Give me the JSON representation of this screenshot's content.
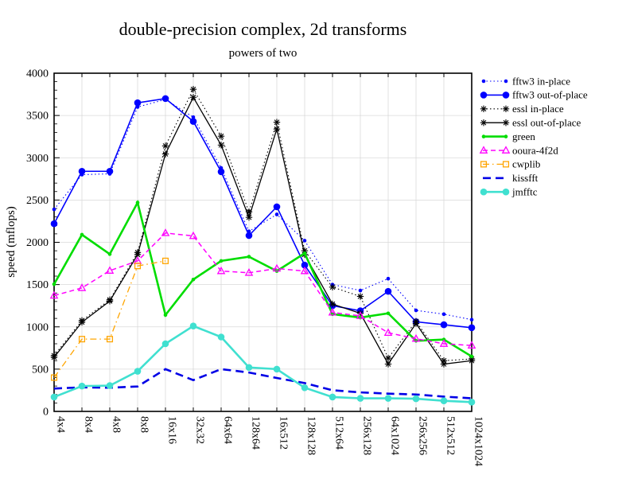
{
  "title": "double-precision complex, 2d transforms",
  "subtitle": "powers of two",
  "chart_data": {
    "type": "line",
    "title": "double-precision complex, 2d transforms",
    "subtitle": "powers of two",
    "xlabel": "",
    "ylabel": "speed (mflops)",
    "ylim": [
      0,
      4000
    ],
    "ytick_step": 500,
    "yticks": [
      0,
      500,
      1000,
      1500,
      2000,
      2500,
      3000,
      3500,
      4000
    ],
    "grid": true,
    "legend_position": "right",
    "categories": [
      "4x4",
      "8x4",
      "4x8",
      "8x8",
      "16x16",
      "32x32",
      "64x64",
      "128x64",
      "16x512",
      "128x128",
      "512x64",
      "256x128",
      "64x1024",
      "256x256",
      "512x512",
      "1024x1024"
    ],
    "series": [
      {
        "name": "fftw3 in-place",
        "color": "#0000ff",
        "line": "dotted",
        "width": 1.1,
        "marker": "dot-small",
        "values": [
          2390,
          2800,
          2810,
          3600,
          3690,
          3480,
          2880,
          2130,
          2330,
          2020,
          1500,
          1430,
          1570,
          1195,
          1150,
          1085
        ]
      },
      {
        "name": "fftw3 out-of-place",
        "color": "#0000ff",
        "line": "solid",
        "width": 1.6,
        "marker": "dot-large",
        "values": [
          2220,
          2840,
          2840,
          3650,
          3700,
          3430,
          2835,
          2080,
          2420,
          1730,
          1250,
          1190,
          1420,
          1060,
          1025,
          990
        ]
      },
      {
        "name": "essl in-place",
        "color": "#000000",
        "line": "dotted",
        "width": 1.1,
        "marker": "asterisk",
        "values": [
          660,
          1075,
          1320,
          1880,
          3140,
          3810,
          3255,
          2360,
          3420,
          1900,
          1470,
          1360,
          630,
          1065,
          600,
          620
        ]
      },
      {
        "name": "essl out-of-place",
        "color": "#000000",
        "line": "solid",
        "width": 1.3,
        "marker": "asterisk",
        "values": [
          640,
          1055,
          1305,
          1855,
          3045,
          3715,
          3150,
          2295,
          3340,
          1855,
          1270,
          1160,
          560,
          1040,
          560,
          600
        ]
      },
      {
        "name": "green",
        "color": "#00dd00",
        "line": "solid",
        "width": 2.6,
        "marker": "dot-small",
        "values": [
          1505,
          2090,
          1860,
          2470,
          1140,
          1560,
          1780,
          1830,
          1660,
          1870,
          1150,
          1110,
          1160,
          835,
          850,
          650
        ]
      },
      {
        "name": "ooura-4f2d",
        "color": "#ff00ff",
        "line": "dashed",
        "width": 1.5,
        "marker": "triangle-open",
        "values": [
          1370,
          1460,
          1665,
          1780,
          2110,
          2075,
          1660,
          1640,
          1690,
          1660,
          1170,
          1130,
          930,
          860,
          800,
          780
        ]
      },
      {
        "name": "cwplib",
        "color": "#ffa500",
        "line": "dashdot",
        "width": 1.3,
        "marker": "square-open",
        "values": [
          400,
          855,
          855,
          1720,
          1780,
          null,
          null,
          null,
          null,
          null,
          null,
          null,
          null,
          null,
          null,
          null
        ]
      },
      {
        "name": "kissfft",
        "color": "#0000e6",
        "line": "long-dash",
        "width": 2.6,
        "marker": "none",
        "values": [
          270,
          285,
          280,
          295,
          500,
          370,
          500,
          460,
          395,
          335,
          250,
          225,
          210,
          200,
          175,
          155
        ]
      },
      {
        "name": "jmfftc",
        "color": "#40e0d0",
        "line": "solid",
        "width": 2.6,
        "marker": "dot-large",
        "values": [
          170,
          300,
          305,
          475,
          800,
          1010,
          880,
          520,
          500,
          280,
          170,
          155,
          155,
          150,
          125,
          110
        ]
      }
    ]
  }
}
